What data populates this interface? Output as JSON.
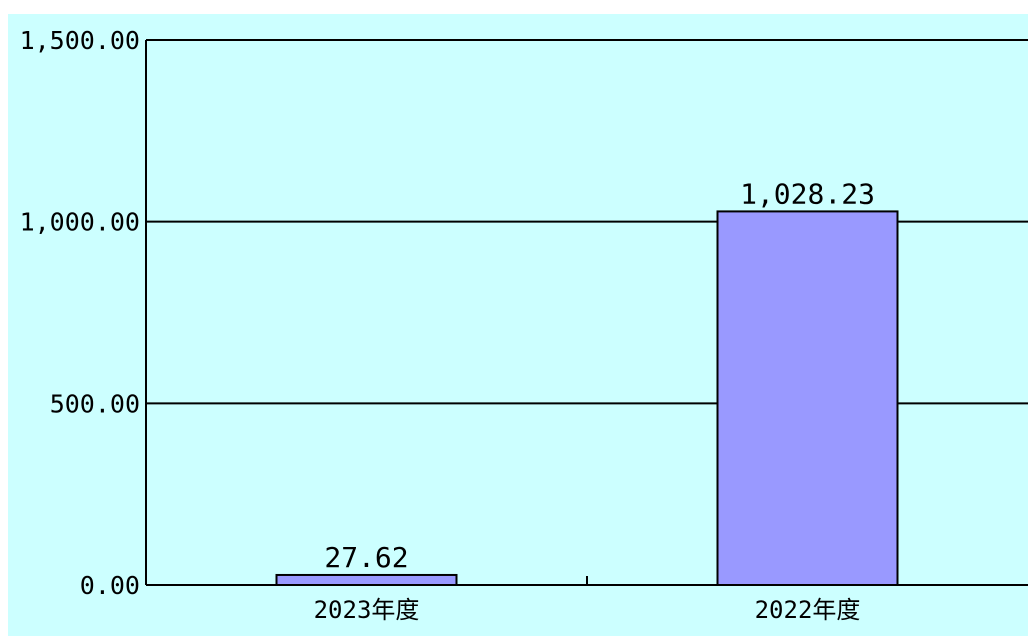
{
  "chart_data": {
    "type": "bar",
    "categories": [
      "2023年度",
      "2022年度"
    ],
    "values": [
      27.62,
      1028.23
    ],
    "value_labels": [
      "27.62",
      "1,028.23"
    ],
    "ylim": [
      0,
      1500
    ],
    "yticks": [
      0,
      500,
      1000,
      1500
    ],
    "ytick_labels": [
      "0.00",
      "500.00",
      "1,000.00",
      "1,500.00"
    ],
    "title": "",
    "xlabel": "",
    "ylabel": "",
    "grid": true,
    "colors": {
      "background": "#ccffff",
      "bar_fill": "#9999ff",
      "bar_stroke": "#000000",
      "gridline": "#000000",
      "axis": "#000000"
    }
  }
}
